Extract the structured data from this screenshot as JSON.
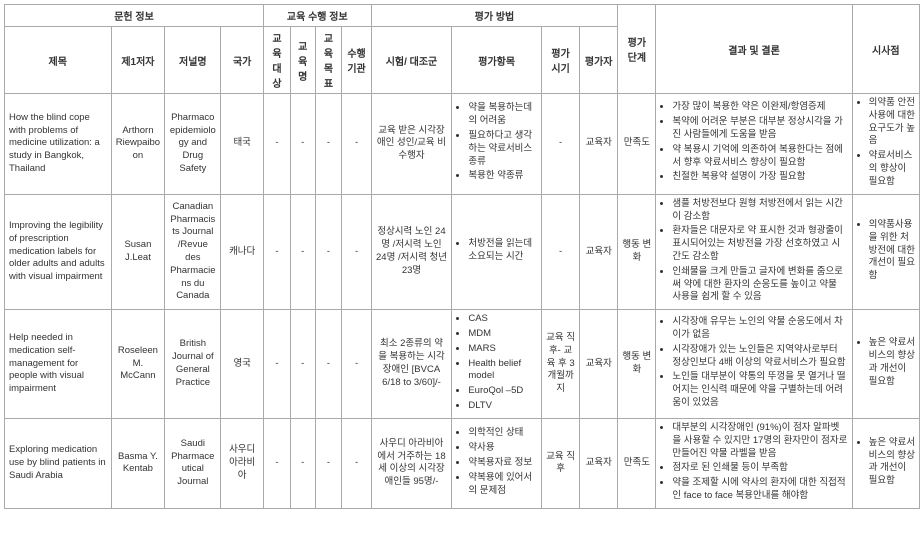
{
  "headers": {
    "group1": "문헌  정보",
    "group2": "교육 수행  정보",
    "group3": "평가 방법",
    "title": "제목",
    "author": "제1저자",
    "journal": "저널명",
    "country": "국가",
    "eduTarget": "교육 대상",
    "eduName": "교육명",
    "eduGoal": "교육 목표",
    "eduOrg": "수행 기관",
    "testGroup": "시험/ 대조군",
    "evalItems": "평가항목",
    "evalTiming": "평가 시기",
    "evaluator": "평가자",
    "evalStage": "평가 단계",
    "result": "결과 및 결론",
    "implication": "시사점"
  },
  "rows": [
    {
      "title": "How the blind cope with problems of medicine utilization: a study in Bangkok, Thailand",
      "author": "Arthorn Riewpaiboon",
      "journal": "Pharmacoepidemiology and Drug Safety",
      "country": "태국",
      "eduTarget": "-",
      "eduName": "-",
      "eduGoal": "-",
      "eduOrg": "-",
      "testGroup": "교육 받은 시각장애인 성인/교육 비수행자",
      "evalItemsList": [
        "약을 복용하는데의 어려움",
        "필요하다고 생각하는 약료서비스 종류",
        "복용한 약종류"
      ],
      "evalTiming": "-",
      "evaluator": "교육자",
      "evalStage": "만족도",
      "resultList": [
        "가장 많이 복용한 약은 이완제/항염증제",
        "복약에 어려운 부분은 대부분 정상시각을 가진 사람들에게 도움을 받음",
        "약 복용시 기억에 의존하여 복용한다는 점에서 향후 약료서비스 향상이 필요함",
        "친절한 복용약 설명이 가장 필요함"
      ],
      "implicationList": [
        "의약품 안전사용에 대한 요구도가 높음",
        "약료서비스의 향상이 필요함"
      ]
    },
    {
      "title": "Improving the legibility of prescription medication labels for older adults and adults with visual impairment",
      "author": "Susan J.Leat",
      "journal": "Canadian Pharmacists Journal /Revue des Pharmaciens du Canada",
      "country": "캐나다",
      "eduTarget": "-",
      "eduName": "-",
      "eduGoal": "-",
      "eduOrg": "-",
      "testGroup": "정상시력 노인 24명 /저시력 노인 24명 /저시력 청년 23명",
      "evalItemsList": [
        "처방전을 읽는데 소요되는 시간"
      ],
      "evalTiming": "-",
      "evaluator": "교육자",
      "evalStage": "행동 변화",
      "resultList": [
        "샘플 처방전보다 원형 처방전에서 읽는 시간이 감소함",
        "환자들은 대문자로 약 표시한 것과 형광줄이 표시되어있는 처방전을 가장 선호하였고 시간도 감소함",
        "인쇄물을 크게 만들고 글자에 변화를 줌으로써 약에 대한 환자의 순응도를 높이고 약물 사용을 쉽게 할 수 있음"
      ],
      "implicationList": [
        "의약품사용을 위한 처방전에 대한 개선이 필요함"
      ]
    },
    {
      "title": "Help needed in medication self-management for people with visual impairment",
      "author": "Roseleen M. McCann",
      "journal": "British Journal of General Practice",
      "country": "영국",
      "eduTarget": "-",
      "eduName": "-",
      "eduGoal": "-",
      "eduOrg": "-",
      "testGroup": "최소 2종류의 약을 복용하는 시각장애인 [BVCA 6/18 to 3/60]/-",
      "evalItemsList": [
        "CAS",
        "MDM",
        "MARS",
        "Health belief model",
        "EuroQol –5D",
        "DLTV"
      ],
      "evalTiming": "교육 직후- 교육 후 3개월까지",
      "evaluator": "교육자",
      "evalStage": "행동 변화",
      "resultList": [
        "시각장애 유무는 노인의 약물 순응도에서 차이가 없음",
        "시각장애가 있는 노인들은 지역약사로부터 정상인보다 4배 이상의 약료서비스가 필요함",
        "노인들 대부분이 약통의 뚜껑을 못 열거나 떨어지는 인식력 때문에 약을 구별하는데 어려움이 있었음"
      ],
      "implicationList": [
        "높은 약료서비스의 향상과 개선이 필요함"
      ]
    },
    {
      "title": "Exploring medication use by blind patients in Saudi Arabia",
      "author": "Basma Y. Kentab",
      "journal": "Saudi Pharmaceutical Journal",
      "country": "사우디아라비아",
      "eduTarget": "-",
      "eduName": "-",
      "eduGoal": "-",
      "eduOrg": "-",
      "testGroup": "사우디 아라비아에서 거주하는 18세 이상의 시각장애인들 95명/-",
      "evalItemsList": [
        "의학적인 상태",
        "약사용",
        "약복용자료 정보",
        "약복용에 있어서의 문제점"
      ],
      "evalTiming": "교육 직후",
      "evaluator": "교육자",
      "evalStage": "만족도",
      "resultList": [
        "대부분의 시각장애인 (91%)이 점자 알파벳을 사용할 수 있지만 17명의 환자만이 점자로 만들어진 약물 라벨을 받음",
        "점자로 된 인쇄물 등이 부족함",
        "약을 조제할 시에 약사의 환자에 대한 직접적인 face to face 복용안내를 해야함"
      ],
      "implicationList": [
        "높은 약료서비스의 향상과 개선이 필요함"
      ]
    }
  ]
}
